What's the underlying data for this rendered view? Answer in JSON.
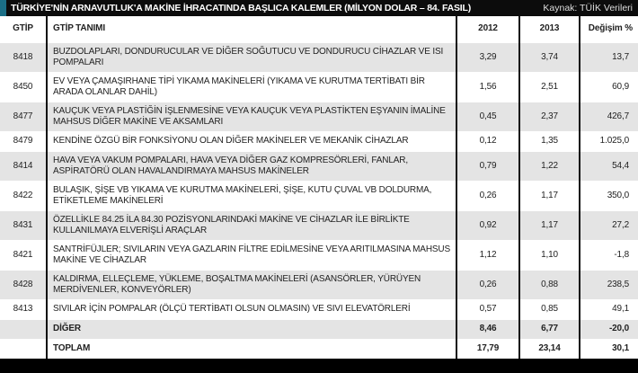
{
  "title": "TÜRKİYE'NİN ARNAVUTLUK'A MAKİNE İHRACATINDA BAŞLICA KALEMLER (MİLYON DOLAR – 84. FASIL)",
  "source": "Kaynak: TÜİK Verileri",
  "colors": {
    "title_bg": "#0c0c0c",
    "accent": "#1b6f86",
    "row_shade": "#e4e4e4"
  },
  "headers": {
    "code": "GTİP",
    "name": "GTİP TANIMI",
    "y2012": "2012",
    "y2013": "2013",
    "change": "Değişim %"
  },
  "rows": [
    {
      "code": "8418",
      "name": "BUZDOLAPLARI, DONDURUCULAR VE DİĞER SOĞUTUCU VE DONDURUCU CİHAZLAR VE ISI POMPALARI",
      "y2012": "3,29",
      "y2013": "3,74",
      "change": "13,7"
    },
    {
      "code": "8450",
      "name": "EV VEYA ÇAMAŞIRHANE TİPİ YIKAMA MAKİNELERİ (YIKAMA VE KURUTMA TERTİBATI BİR ARADA OLANLAR DAHİL)",
      "y2012": "1,56",
      "y2013": "2,51",
      "change": "60,9"
    },
    {
      "code": "8477",
      "name": "KAUÇUK VEYA PLASTİĞİN İŞLENMESİNE VEYA KAUÇUK VEYA PLASTİKTEN EŞYANIN İMALİNE MAHSUS DİĞER MAKİNE VE AKSAMLARI",
      "y2012": "0,45",
      "y2013": "2,37",
      "change": "426,7"
    },
    {
      "code": "8479",
      "name": "KENDİNE ÖZGÜ BİR FONKSİYONU OLAN DİĞER MAKİNELER VE MEKANİK CİHAZLAR",
      "y2012": "0,12",
      "y2013": "1,35",
      "change": "1.025,0"
    },
    {
      "code": "8414",
      "name": "HAVA VEYA VAKUM POMPALARI, HAVA VEYA DİĞER GAZ KOMPRESÖRLERİ, FANLAR, ASPİRATÖRÜ OLAN HAVALANDIRMAYA MAHSUS MAKİNELER",
      "y2012": "0,79",
      "y2013": "1,22",
      "change": "54,4"
    },
    {
      "code": "8422",
      "name": "BULAŞIK, ŞİŞE VB YIKAMA VE KURUTMA MAKİNELERİ, ŞİŞE, KUTU ÇUVAL VB DOLDURMA, ETİKETLEME MAKİNELERİ",
      "y2012": "0,26",
      "y2013": "1,17",
      "change": "350,0"
    },
    {
      "code": "8431",
      "name": "ÖZELLİKLE 84.25 İLA 84.30 POZİSYONLARINDAKİ MAKİNE VE CİHAZLAR İLE BİRLİKTE KULLANILMAYA ELVERİŞLİ ARAÇLAR",
      "y2012": "0,92",
      "y2013": "1,17",
      "change": "27,2"
    },
    {
      "code": "8421",
      "name": "SANTRİFÜJLER; SIVILARIN VEYA GAZLARIN FİLTRE EDİLMESİNE VEYA ARITILMASINA MAHSUS MAKİNE VE CİHAZLAR",
      "y2012": "1,12",
      "y2013": "1,10",
      "change": "-1,8"
    },
    {
      "code": "8428",
      "name": "KALDIRMA, ELLEÇLEME, YÜKLEME, BOŞALTMA MAKİNELERİ (ASANSÖRLER, YÜRÜYEN MERDİVENLER, KONVEYÖRLER)",
      "y2012": "0,26",
      "y2013": "0,88",
      "change": "238,5"
    },
    {
      "code": "8413",
      "name": "SIVILAR İÇİN POMPALAR (ÖLÇÜ TERTİBATI OLSUN OLMASIN) VE SIVI ELEVATÖRLERİ",
      "y2012": "0,57",
      "y2013": "0,85",
      "change": "49,1"
    },
    {
      "code": "",
      "name": "DİĞER",
      "y2012": "8,46",
      "y2013": "6,77",
      "change": "-20,0"
    },
    {
      "code": "",
      "name": "TOPLAM",
      "y2012": "17,79",
      "y2013": "23,14",
      "change": "30,1"
    }
  ]
}
